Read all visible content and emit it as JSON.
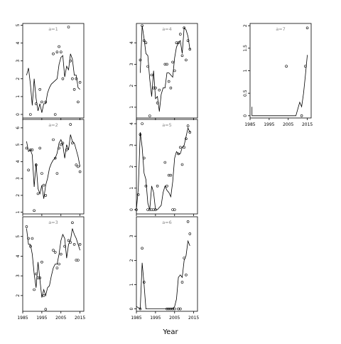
{
  "figure": {
    "xlabel": "Year",
    "x_tick_labels": [
      "1985",
      "1995",
      "2005",
      "2015"
    ]
  },
  "chart_data": [
    {
      "type": "scatter",
      "panel_label": "a=1",
      "xlim": [
        1985,
        2017
      ],
      "ylim": [
        -0.2,
        5.1
      ],
      "x_ticks": [
        1985,
        1995,
        2005,
        2015
      ],
      "y_ticks": [
        0,
        1,
        2,
        3,
        4,
        5
      ],
      "points": [
        [
          1989,
          0
        ],
        [
          1992,
          0.6
        ],
        [
          1994,
          1.4
        ],
        [
          1995,
          0.7
        ],
        [
          1997,
          0.7
        ],
        [
          2001,
          3.4
        ],
        [
          2002,
          0
        ],
        [
          2003,
          3.5
        ],
        [
          2004,
          3.8
        ],
        [
          2005,
          3.5
        ],
        [
          2006,
          2.0
        ],
        [
          2009,
          4.9
        ],
        [
          2010,
          3.0
        ],
        [
          2011,
          2.0
        ],
        [
          2012,
          1.4
        ],
        [
          2013,
          2.0
        ],
        [
          2014,
          0.7
        ],
        [
          2015,
          1.8
        ]
      ],
      "line": [
        [
          1987,
          2.2
        ],
        [
          1988,
          2.6
        ],
        [
          1989,
          1.7
        ],
        [
          1990,
          0.5
        ],
        [
          1991,
          2.0
        ],
        [
          1992,
          0.9
        ],
        [
          1993,
          0.2
        ],
        [
          1994,
          0.6
        ],
        [
          1995,
          0.1
        ],
        [
          1996,
          0.6
        ],
        [
          1997,
          0.6
        ],
        [
          1998,
          1.2
        ],
        [
          1999,
          1.5
        ],
        [
          2000,
          1.7
        ],
        [
          2001,
          1.8
        ],
        [
          2002,
          1.9
        ],
        [
          2003,
          2.0
        ],
        [
          2004,
          2.8
        ],
        [
          2005,
          3.2
        ],
        [
          2006,
          3.3
        ],
        [
          2007,
          2.1
        ],
        [
          2008,
          2.7
        ],
        [
          2009,
          2.5
        ],
        [
          2010,
          3.4
        ],
        [
          2011,
          3.1
        ],
        [
          2012,
          2.2
        ],
        [
          2013,
          2.2
        ],
        [
          2014,
          1.5
        ],
        [
          2015,
          1.4
        ]
      ]
    },
    {
      "type": "scatter",
      "panel_label": "a=2",
      "xlim": [
        1985,
        2017
      ],
      "ylim": [
        0.9,
        6.5
      ],
      "x_ticks": [
        1985,
        1995,
        2005,
        2015
      ],
      "y_ticks": [
        1,
        2,
        3,
        4,
        5,
        6
      ],
      "points": [
        [
          1987,
          4.8
        ],
        [
          1988,
          3.5
        ],
        [
          1989,
          4.7
        ],
        [
          1990,
          4.7
        ],
        [
          1991,
          1.1
        ],
        [
          1992,
          3.8
        ],
        [
          1993,
          2.1
        ],
        [
          1994,
          4.8
        ],
        [
          1995,
          3.3
        ],
        [
          1996,
          2.6
        ],
        [
          1997,
          2.0
        ],
        [
          2001,
          5.3
        ],
        [
          2002,
          4.2
        ],
        [
          2003,
          3.3
        ],
        [
          2004,
          4.8
        ],
        [
          2005,
          5.0
        ],
        [
          2006,
          5.1
        ],
        [
          2008,
          4.7
        ],
        [
          2010,
          6.2
        ],
        [
          2011,
          5.1
        ],
        [
          2013,
          3.8
        ],
        [
          2014,
          3.7
        ],
        [
          2015,
          3.4
        ]
      ],
      "line": [
        [
          1987,
          5.2
        ],
        [
          1988,
          4.6
        ],
        [
          1989,
          4.7
        ],
        [
          1990,
          4.4
        ],
        [
          1991,
          2.5
        ],
        [
          1992,
          3.9
        ],
        [
          1993,
          2.4
        ],
        [
          1994,
          2.1
        ],
        [
          1995,
          2.6
        ],
        [
          1996,
          1.8
        ],
        [
          1997,
          2.6
        ],
        [
          1998,
          3.0
        ],
        [
          1999,
          3.6
        ],
        [
          2000,
          3.9
        ],
        [
          2001,
          4.1
        ],
        [
          2002,
          4.2
        ],
        [
          2003,
          4.5
        ],
        [
          2004,
          5.1
        ],
        [
          2005,
          5.3
        ],
        [
          2006,
          5.0
        ],
        [
          2007,
          4.2
        ],
        [
          2008,
          5.0
        ],
        [
          2009,
          4.7
        ],
        [
          2010,
          5.6
        ],
        [
          2011,
          5.2
        ],
        [
          2012,
          5.1
        ],
        [
          2013,
          4.7
        ],
        [
          2014,
          4.3
        ],
        [
          2015,
          3.7
        ]
      ]
    },
    {
      "type": "scatter",
      "panel_label": "a=3",
      "xlim": [
        1985,
        2017
      ],
      "ylim": [
        1.2,
        6.0
      ],
      "x_ticks": [
        1985,
        1995,
        2005,
        2015
      ],
      "y_ticks": [
        2,
        3,
        4,
        5
      ],
      "points": [
        [
          1987,
          5.5
        ],
        [
          1988,
          4.9
        ],
        [
          1989,
          4.5
        ],
        [
          1990,
          4.9
        ],
        [
          1991,
          2.3
        ],
        [
          1992,
          3.1
        ],
        [
          1993,
          2.9
        ],
        [
          1994,
          2.9
        ],
        [
          1995,
          3.7
        ],
        [
          1996,
          2.0
        ],
        [
          1997,
          1.3
        ],
        [
          2001,
          4.3
        ],
        [
          2002,
          4.2
        ],
        [
          2003,
          3.4
        ],
        [
          2004,
          3.6
        ],
        [
          2005,
          4.1
        ],
        [
          2007,
          4.5
        ],
        [
          2009,
          4.8
        ],
        [
          2010,
          4.7
        ],
        [
          2011,
          5.7
        ],
        [
          2012,
          4.6
        ],
        [
          2013,
          3.8
        ],
        [
          2014,
          3.8
        ],
        [
          2015,
          4.6
        ]
      ],
      "line": [
        [
          1987,
          5.4
        ],
        [
          1988,
          4.6
        ],
        [
          1989,
          4.6
        ],
        [
          1990,
          4.1
        ],
        [
          1991,
          3.1
        ],
        [
          1992,
          2.4
        ],
        [
          1993,
          3.7
        ],
        [
          1994,
          2.8
        ],
        [
          1995,
          1.9
        ],
        [
          1996,
          2.3
        ],
        [
          1997,
          2.0
        ],
        [
          1998,
          2.4
        ],
        [
          1999,
          2.5
        ],
        [
          2000,
          3.0
        ],
        [
          2001,
          3.4
        ],
        [
          2002,
          3.6
        ],
        [
          2003,
          3.6
        ],
        [
          2004,
          4.1
        ],
        [
          2005,
          4.8
        ],
        [
          2006,
          5.1
        ],
        [
          2007,
          4.9
        ],
        [
          2008,
          3.9
        ],
        [
          2009,
          4.6
        ],
        [
          2010,
          4.8
        ],
        [
          2011,
          5.4
        ],
        [
          2012,
          5.1
        ],
        [
          2013,
          4.9
        ],
        [
          2014,
          4.6
        ],
        [
          2015,
          4.3
        ]
      ]
    },
    {
      "type": "scatter",
      "panel_label": "a=4",
      "xlim": [
        1985,
        2017
      ],
      "ylim": [
        0.5,
        4.9
      ],
      "x_ticks": [
        1985,
        1995,
        2005,
        2015
      ],
      "y_ticks": [
        1,
        2,
        3,
        4
      ],
      "points": [
        [
          1987,
          3.2
        ],
        [
          1988,
          4.8
        ],
        [
          1989,
          4.1
        ],
        [
          1990,
          4.0
        ],
        [
          1991,
          2.9
        ],
        [
          1992,
          0.6
        ],
        [
          1993,
          2.5
        ],
        [
          1994,
          1.9
        ],
        [
          1995,
          1.9
        ],
        [
          1996,
          1.2
        ],
        [
          1997,
          1.8
        ],
        [
          2000,
          3.0
        ],
        [
          2001,
          3.0
        ],
        [
          2002,
          2.2
        ],
        [
          2003,
          1.9
        ],
        [
          2004,
          3.1
        ],
        [
          2005,
          2.7
        ],
        [
          2006,
          4.0
        ],
        [
          2007,
          4.0
        ],
        [
          2008,
          4.4
        ],
        [
          2009,
          3.4
        ],
        [
          2010,
          4.7
        ],
        [
          2011,
          3.2
        ],
        [
          2012,
          4.1
        ],
        [
          2013,
          3.7
        ]
      ],
      "line": [
        [
          1987,
          2.6
        ],
        [
          1988,
          4.8
        ],
        [
          1989,
          4.2
        ],
        [
          1990,
          3.5
        ],
        [
          1991,
          3.4
        ],
        [
          1992,
          2.3
        ],
        [
          1993,
          1.5
        ],
        [
          1994,
          2.7
        ],
        [
          1995,
          1.4
        ],
        [
          1996,
          1.5
        ],
        [
          1997,
          0.8
        ],
        [
          1998,
          1.6
        ],
        [
          1999,
          1.9
        ],
        [
          2000,
          1.9
        ],
        [
          2001,
          2.6
        ],
        [
          2002,
          2.6
        ],
        [
          2003,
          2.5
        ],
        [
          2004,
          2.4
        ],
        [
          2005,
          3.3
        ],
        [
          2006,
          3.8
        ],
        [
          2007,
          4.0
        ],
        [
          2008,
          4.1
        ],
        [
          2009,
          3.5
        ],
        [
          2010,
          4.7
        ],
        [
          2011,
          4.6
        ],
        [
          2012,
          4.3
        ],
        [
          2013,
          3.7
        ]
      ]
    },
    {
      "type": "scatter",
      "panel_label": "a=5",
      "xlim": [
        1985,
        2017
      ],
      "ylim": [
        -0.2,
        4.2
      ],
      "x_ticks": [
        1985,
        1995,
        2005,
        2015
      ],
      "y_ticks": [
        0,
        1,
        2,
        3,
        4
      ],
      "points": [
        [
          1985,
          0
        ],
        [
          1986,
          0.7
        ],
        [
          1987,
          3.5
        ],
        [
          1988,
          4.0
        ],
        [
          1989,
          2.4
        ],
        [
          1990,
          1.1
        ],
        [
          1991,
          0
        ],
        [
          1992,
          0
        ],
        [
          1993,
          0
        ],
        [
          1994,
          0
        ],
        [
          1995,
          0
        ],
        [
          1996,
          1.1
        ],
        [
          2000,
          2.2
        ],
        [
          2001,
          1.1
        ],
        [
          2002,
          1.6
        ],
        [
          2003,
          1.6
        ],
        [
          2004,
          0
        ],
        [
          2005,
          0
        ],
        [
          2007,
          2.6
        ],
        [
          2008,
          2.9
        ],
        [
          2009,
          2.1
        ],
        [
          2010,
          2.9
        ],
        [
          2011,
          3.3
        ],
        [
          2012,
          3.9
        ],
        [
          2013,
          3.6
        ]
      ],
      "line": [
        [
          1985,
          0
        ],
        [
          1986,
          1.0
        ],
        [
          1987,
          3.6
        ],
        [
          1988,
          2.9
        ],
        [
          1989,
          1.7
        ],
        [
          1990,
          1.4
        ],
        [
          1991,
          0.3
        ],
        [
          1992,
          0
        ],
        [
          1993,
          1.1
        ],
        [
          1994,
          0.8
        ],
        [
          1995,
          0
        ],
        [
          1996,
          0
        ],
        [
          1997,
          0.1
        ],
        [
          1998,
          0.2
        ],
        [
          1999,
          0.8
        ],
        [
          2000,
          1.1
        ],
        [
          2001,
          0.9
        ],
        [
          2002,
          0.8
        ],
        [
          2003,
          0.6
        ],
        [
          2004,
          1.3
        ],
        [
          2005,
          2.4
        ],
        [
          2006,
          2.7
        ],
        [
          2007,
          2.6
        ],
        [
          2008,
          2.6
        ],
        [
          2009,
          2.9
        ],
        [
          2010,
          3.0
        ],
        [
          2011,
          3.4
        ],
        [
          2012,
          3.8
        ],
        [
          2013,
          3.6
        ]
      ]
    },
    {
      "type": "scatter",
      "panel_label": "a=6",
      "xlim": [
        1985,
        2017
      ],
      "ylim": [
        -0.1,
        3.8
      ],
      "x_ticks": [
        1985,
        1995,
        2005,
        2015
      ],
      "y_ticks": [
        0,
        1,
        2,
        3
      ],
      "points": [
        [
          1987,
          0
        ],
        [
          1988,
          2.5
        ],
        [
          1989,
          1.1
        ],
        [
          2001,
          0
        ],
        [
          2002,
          0
        ],
        [
          2003,
          0
        ],
        [
          2004,
          0
        ],
        [
          2005,
          0
        ],
        [
          2007,
          0
        ],
        [
          2008,
          0
        ],
        [
          2009,
          1.1
        ],
        [
          2010,
          2.1
        ],
        [
          2011,
          1.4
        ],
        [
          2012,
          3.6
        ],
        [
          2013,
          3.1
        ]
      ],
      "line": [
        [
          1985,
          0.1
        ],
        [
          1987,
          0
        ],
        [
          1988,
          1.9
        ],
        [
          1989,
          1.0
        ],
        [
          1990,
          0
        ],
        [
          2002,
          0
        ],
        [
          2003,
          0
        ],
        [
          2004,
          0
        ],
        [
          2005,
          0.1
        ],
        [
          2006,
          0.4
        ],
        [
          2007,
          1.3
        ],
        [
          2008,
          1.4
        ],
        [
          2009,
          1.3
        ],
        [
          2010,
          2.0
        ],
        [
          2011,
          2.2
        ],
        [
          2012,
          2.8
        ],
        [
          2013,
          2.6
        ]
      ]
    },
    {
      "type": "scatter",
      "panel_label": "a=7",
      "xlim": [
        1985,
        2017
      ],
      "ylim": [
        -0.05,
        2.05
      ],
      "x_ticks": [
        1985,
        1995,
        2005,
        2015
      ],
      "y_ticks": [
        0,
        0.5,
        1,
        1.5,
        2
      ],
      "points": [
        [
          2004,
          1.1
        ],
        [
          2012,
          0
        ],
        [
          2014,
          1.1
        ],
        [
          2015,
          1.95
        ]
      ],
      "line": [
        [
          1986,
          0.2
        ],
        [
          1986,
          0
        ],
        [
          1991,
          0
        ],
        [
          2007,
          0
        ],
        [
          2009,
          0
        ],
        [
          2011,
          0.3
        ],
        [
          2012,
          0.2
        ],
        [
          2013,
          0.5
        ],
        [
          2014,
          0.9
        ],
        [
          2015,
          1.35
        ]
      ]
    }
  ]
}
